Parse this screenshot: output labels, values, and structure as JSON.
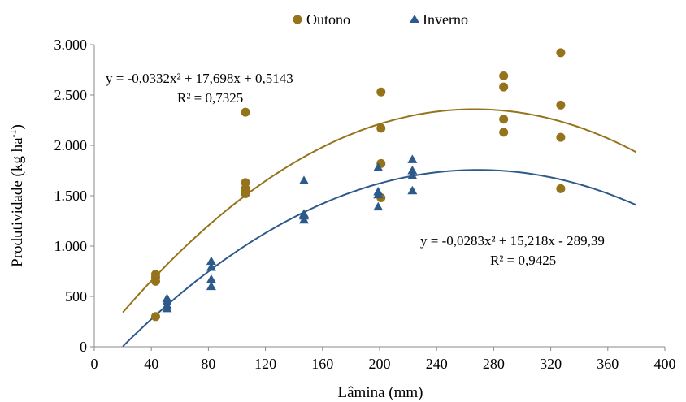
{
  "chart_data": {
    "type": "scatter",
    "xlabel": "Lâmina (mm)",
    "ylabel": "Produtividade (kg ha-1)",
    "ylabel_parts": {
      "main": "Produtividade (kg ha",
      "sup": "-1",
      "close": ")"
    },
    "xlim": [
      0,
      400
    ],
    "ylim": [
      0,
      3000
    ],
    "x_ticks": [
      0,
      40,
      80,
      120,
      160,
      200,
      240,
      280,
      320,
      360,
      400
    ],
    "x_tick_labels": [
      "0",
      "40",
      "80",
      "120",
      "160",
      "200",
      "240",
      "280",
      "320",
      "360",
      "400"
    ],
    "y_ticks": [
      0,
      500,
      1000,
      1500,
      2000,
      2500,
      3000
    ],
    "y_tick_labels": [
      "0",
      "500",
      "1.000",
      "1.500",
      "2.000",
      "2.500",
      "3.000"
    ],
    "grid": false,
    "legend_position": "top-center",
    "series": [
      {
        "name": "Outono",
        "marker": "circle",
        "color": "#94731b",
        "points": [
          [
            43,
            300
          ],
          [
            43,
            650
          ],
          [
            43,
            690
          ],
          [
            43,
            720
          ],
          [
            106,
            2330
          ],
          [
            106,
            1630
          ],
          [
            106,
            1570
          ],
          [
            106,
            1550
          ],
          [
            106,
            1520
          ],
          [
            201,
            2530
          ],
          [
            201,
            2170
          ],
          [
            201,
            1820
          ],
          [
            201,
            1480
          ],
          [
            287,
            2690
          ],
          [
            287,
            2580
          ],
          [
            287,
            2260
          ],
          [
            287,
            2130
          ],
          [
            327,
            2920
          ],
          [
            327,
            2400
          ],
          [
            327,
            2080
          ],
          [
            327,
            1570
          ]
        ],
        "fit": {
          "coefficients": [
            0.5143,
            17.698,
            -0.0332
          ],
          "x_range": [
            20,
            380
          ],
          "equation": "y = -0,0332x² + 17,698x + 0,5143",
          "r2": "R² = 0,7325"
        }
      },
      {
        "name": "Inverno",
        "marker": "triangle",
        "color": "#2d5a8a",
        "points": [
          [
            51,
            380
          ],
          [
            51,
            410
          ],
          [
            51,
            450
          ],
          [
            51,
            480
          ],
          [
            82,
            600
          ],
          [
            82,
            670
          ],
          [
            82,
            790
          ],
          [
            82,
            850
          ],
          [
            147,
            1650
          ],
          [
            147,
            1320
          ],
          [
            147,
            1300
          ],
          [
            147,
            1260
          ],
          [
            199,
            1780
          ],
          [
            199,
            1540
          ],
          [
            199,
            1510
          ],
          [
            199,
            1390
          ],
          [
            223,
            1860
          ],
          [
            223,
            1750
          ],
          [
            223,
            1700
          ],
          [
            223,
            1550
          ]
        ],
        "fit": {
          "coefficients": [
            -289.39,
            15.218,
            -0.0283
          ],
          "x_range": [
            20,
            380
          ],
          "equation": "y = -0,0283x² + 15,218x - 289,39",
          "r2": "R² = 0,9425"
        }
      }
    ]
  }
}
